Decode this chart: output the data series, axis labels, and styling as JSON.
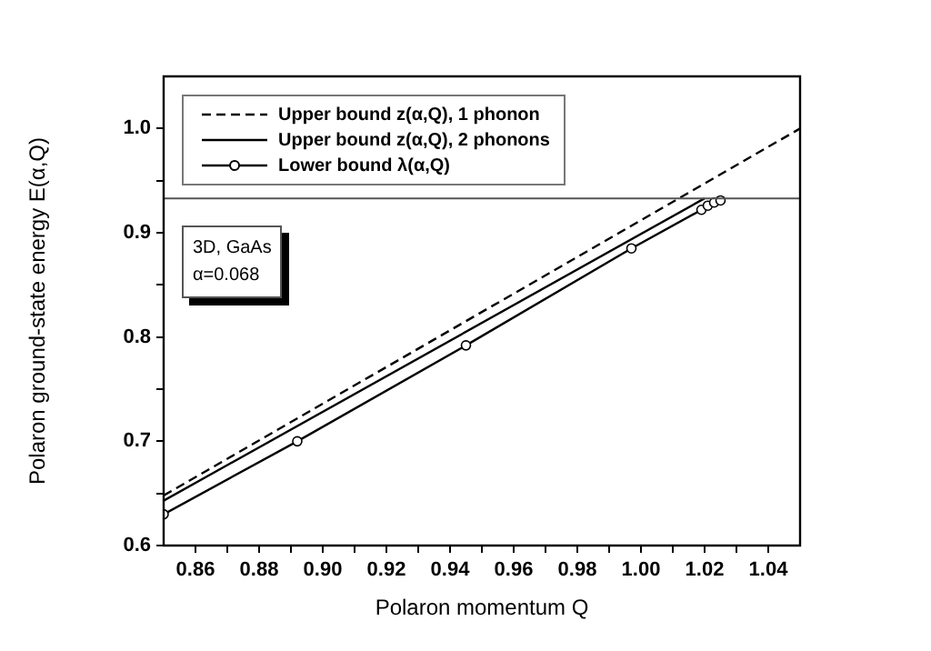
{
  "chart_data": {
    "type": "line",
    "xlabel": "Polaron momentum Q",
    "ylabel": "Polaron ground-state energy E(α,Q)",
    "xlim": [
      0.85,
      1.05
    ],
    "ylim": [
      0.6,
      1.05
    ],
    "xticks": [
      0.86,
      {
        "value": 0.87,
        "label": null
      },
      0.88,
      {
        "value": 0.89,
        "label": null
      },
      {
        "value": 0.9,
        "label": "0.90"
      },
      {
        "value": 0.91,
        "label": null
      },
      0.92,
      {
        "value": 0.93,
        "label": null
      },
      0.94,
      {
        "value": 0.95,
        "label": null
      },
      0.96,
      {
        "value": 0.97,
        "label": null
      },
      0.98,
      {
        "value": 0.99,
        "label": null
      },
      {
        "value": 1,
        "label": "1.00"
      },
      {
        "value": 1.01,
        "label": null
      },
      1.02,
      {
        "value": 1.03,
        "label": null
      },
      1.04
    ],
    "yticks": [
      0.6,
      {
        "value": 0.65,
        "label": null
      },
      0.7,
      {
        "value": 0.75,
        "label": null
      },
      0.8,
      {
        "value": 0.85,
        "label": null
      },
      0.9,
      {
        "value": 0.95,
        "label": null
      },
      {
        "value": 1,
        "label": "1.0"
      }
    ],
    "grid": false,
    "legend": "top left",
    "series": [
      {
        "name": "Upper bound z(α,Q), 1 phonon",
        "color": "#000000",
        "line_style": "dashed",
        "marker": "none",
        "x": [
          0.85,
          1.05
        ],
        "values": [
          0.648,
          1.0
        ]
      },
      {
        "name": "Upper bound z(α,Q), 2 phonons",
        "color": "#000000",
        "line_style": "solid",
        "marker": "none",
        "x": [
          0.85,
          1.02
        ],
        "values": [
          0.643,
          0.933
        ]
      },
      {
        "name": "Lower bound λ(α,Q)",
        "color": "#000000",
        "line_style": "solid",
        "marker": "circle",
        "x": [
          0.85,
          0.892,
          0.945,
          0.997,
          1.019,
          1.021,
          1.023,
          1.025
        ],
        "values": [
          0.63,
          0.7,
          0.792,
          0.885,
          0.922,
          0.926,
          0.929,
          0.931
        ]
      }
    ],
    "ref_lines": [
      {
        "axis": "y",
        "value": 0.933,
        "color": "#555555"
      }
    ],
    "annotations": [
      "3D, GaAs\nα=0.068"
    ]
  }
}
